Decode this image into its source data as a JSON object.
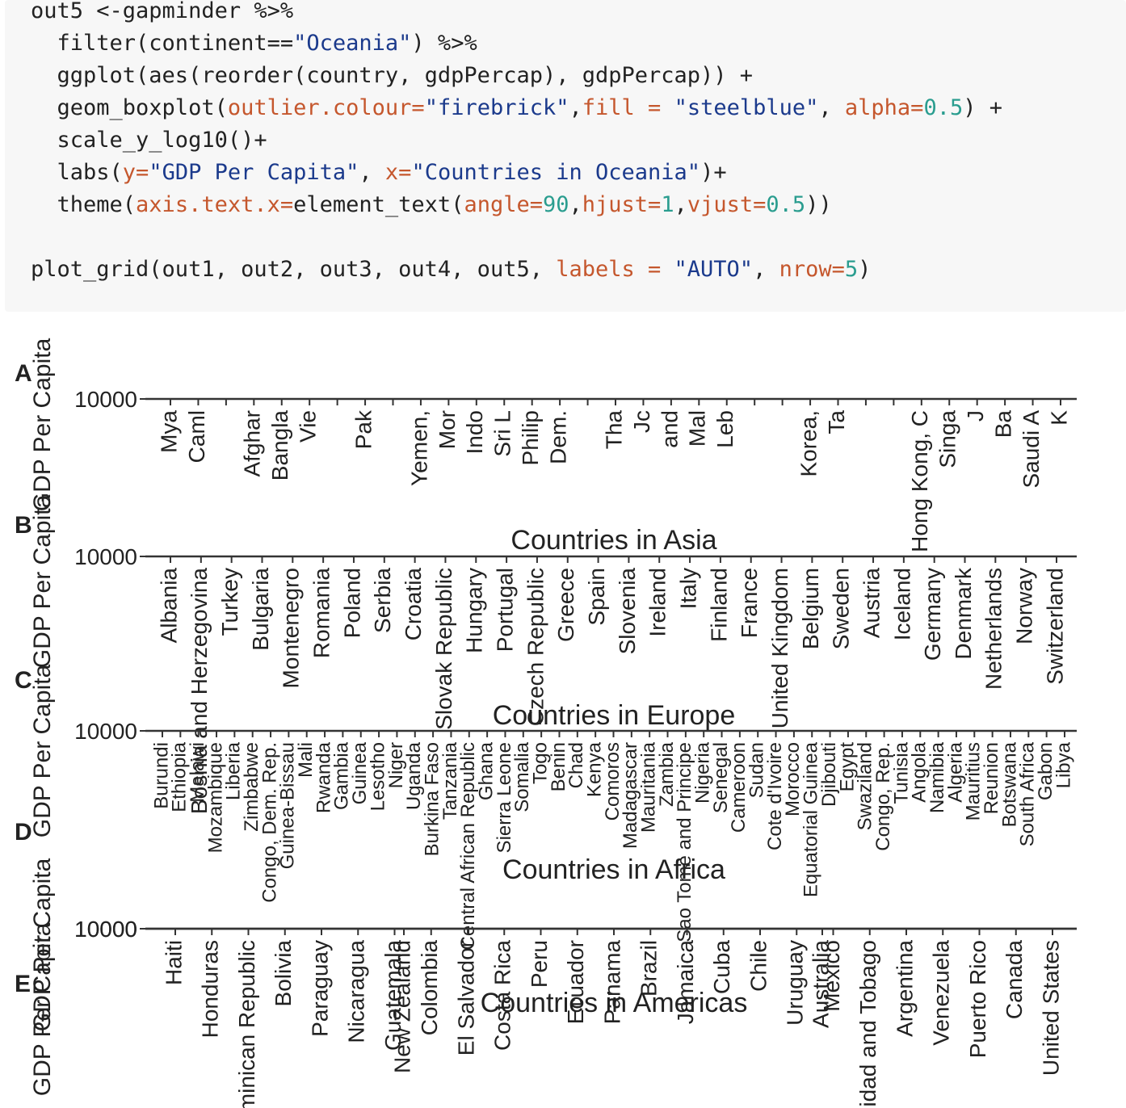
{
  "code": {
    "lines": [
      [
        {
          "t": "out5 <-gapminder %>%",
          "k": "default"
        }
      ],
      [
        {
          "t": "  filter(continent==",
          "k": "default"
        },
        {
          "t": "\"Oceania\"",
          "k": "string"
        },
        {
          "t": ") %>%",
          "k": "default"
        }
      ],
      [
        {
          "t": "  ggplot(aes(reorder(country, gdpPercap), gdpPercap)) +",
          "k": "default"
        }
      ],
      [
        {
          "t": "  geom_boxplot(",
          "k": "default"
        },
        {
          "t": "outlier.colour=",
          "k": "arg"
        },
        {
          "t": "\"firebrick\"",
          "k": "string"
        },
        {
          "t": ",",
          "k": "default"
        },
        {
          "t": "fill = ",
          "k": "arg"
        },
        {
          "t": "\"steelblue\"",
          "k": "string"
        },
        {
          "t": ", ",
          "k": "default"
        },
        {
          "t": "alpha=",
          "k": "arg"
        },
        {
          "t": "0.5",
          "k": "num"
        },
        {
          "t": ") +",
          "k": "default"
        }
      ],
      [
        {
          "t": "  scale_y_log10()+",
          "k": "default"
        }
      ],
      [
        {
          "t": "  labs(",
          "k": "default"
        },
        {
          "t": "y=",
          "k": "arg"
        },
        {
          "t": "\"GDP Per Capita\"",
          "k": "string"
        },
        {
          "t": ", ",
          "k": "default"
        },
        {
          "t": "x=",
          "k": "arg"
        },
        {
          "t": "\"Countries in Oceania\"",
          "k": "string"
        },
        {
          "t": ")+",
          "k": "default"
        }
      ],
      [
        {
          "t": "  theme(",
          "k": "default"
        },
        {
          "t": "axis.text.x=",
          "k": "arg"
        },
        {
          "t": "element_text(",
          "k": "default"
        },
        {
          "t": "angle=",
          "k": "arg"
        },
        {
          "t": "90",
          "k": "num"
        },
        {
          "t": ",",
          "k": "default"
        },
        {
          "t": "hjust=",
          "k": "arg"
        },
        {
          "t": "1",
          "k": "num"
        },
        {
          "t": ",",
          "k": "default"
        },
        {
          "t": "vjust=",
          "k": "arg"
        },
        {
          "t": "0.5",
          "k": "num"
        },
        {
          "t": "))",
          "k": "default"
        }
      ],
      [
        {
          "t": "",
          "k": "default"
        }
      ],
      [
        {
          "t": "plot_grid(out1, out2, out3, out4, out5, ",
          "k": "default"
        },
        {
          "t": "labels = ",
          "k": "arg"
        },
        {
          "t": "\"AUTO\"",
          "k": "string"
        },
        {
          "t": ", ",
          "k": "default"
        },
        {
          "t": "nrow=",
          "k": "arg"
        },
        {
          "t": "5",
          "k": "num"
        },
        {
          "t": ")",
          "k": "default"
        }
      ]
    ]
  },
  "chart_data": [
    {
      "type": "boxplot",
      "panel_label": "A",
      "ylabel": "GDP Per Capita",
      "xlabel": "Countries in Asia",
      "y_tick_labels": [
        "10000"
      ],
      "categories": [
        "Mya",
        "Caml",
        "",
        "Afghar",
        "Bangla",
        "Vie",
        "",
        "Pak",
        "",
        "Yemen,",
        "Mor",
        "Indo",
        "Sri L",
        "Philip",
        "Dem.",
        "",
        "Tha",
        "Jc",
        "and",
        "Mal",
        "Leb",
        "",
        "",
        "Korea,",
        "Ta",
        "",
        "",
        "Hong Kong, C",
        "Singa",
        "J",
        "Ba",
        "Saudi A",
        "K"
      ]
    },
    {
      "type": "boxplot",
      "panel_label": "B",
      "ylabel": "GDP Per Capita",
      "xlabel": "Countries in Europe",
      "y_tick_labels": [
        "10000"
      ],
      "categories": [
        "Albania",
        "Bosnia and Herzegovina",
        "Turkey",
        "Bulgaria",
        "Montenegro",
        "Romania",
        "Poland",
        "Serbia",
        "Croatia",
        "Slovak Republic",
        "Hungary",
        "Portugal",
        "Czech Republic",
        "Greece",
        "Spain",
        "Slovenia",
        "Ireland",
        "Italy",
        "Finland",
        "France",
        "United Kingdom",
        "Belgium",
        "Sweden",
        "Austria",
        "Iceland",
        "Germany",
        "Denmark",
        "Netherlands",
        "Norway",
        "Switzerland"
      ]
    },
    {
      "type": "boxplot",
      "panel_label": "C",
      "ylabel": "GDP Per Capita",
      "xlabel": "Countries in Africa",
      "y_tick_labels": [
        "10000"
      ],
      "categories": [
        "Burundi",
        "Ethiopia",
        "Malawi",
        "Mozambique",
        "Liberia",
        "Zimbabwe",
        "Congo, Dem. Rep.",
        "Guinea-Bissau",
        "Mali",
        "Rwanda",
        "Gambia",
        "Guinea",
        "Lesotho",
        "Niger",
        "Uganda",
        "Burkina Faso",
        "Tanzania",
        "Central African Republic",
        "Ghana",
        "Sierra Leone",
        "Somalia",
        "Togo",
        "Benin",
        "Chad",
        "Kenya",
        "Comoros",
        "Madagascar",
        "Mauritania",
        "Zambia",
        "Sao Tome and Principe",
        "Nigeria",
        "Senegal",
        "Cameroon",
        "Sudan",
        "Cote d'Ivoire",
        "Morocco",
        "Equatorial Guinea",
        "Djibouti",
        "Egypt",
        "Swaziland",
        "Congo, Rep.",
        "Tunisia",
        "Angola",
        "Namibia",
        "Algeria",
        "Mauritius",
        "Reunion",
        "Botswana",
        "South Africa",
        "Gabon",
        "Libya"
      ]
    },
    {
      "type": "boxplot",
      "panel_label": "D",
      "ylabel": "GDP Per Capita",
      "xlabel": "Countries in Americas",
      "y_tick_labels": [
        "10000"
      ],
      "categories": [
        "Haiti",
        "Honduras",
        "Dominican Republic",
        "Bolivia",
        "Paraguay",
        "Nicaragua",
        "Guatemala",
        "Colombia",
        "El Salvador",
        "Costa Rica",
        "Peru",
        "Ecuador",
        "Panama",
        "Brazil",
        "Jamaica",
        "Cuba",
        "Chile",
        "Uruguay",
        "Mexico",
        "Trinidad and Tobago",
        "Argentina",
        "Venezuela",
        "Puerto Rico",
        "Canada",
        "United States"
      ]
    },
    {
      "type": "boxplot",
      "panel_label": "E",
      "ylabel": "GDP Per Capita",
      "xlabel": "",
      "y_tick_labels": [
        "10000"
      ],
      "categories": [
        "New Zealand",
        "Australia"
      ]
    }
  ]
}
